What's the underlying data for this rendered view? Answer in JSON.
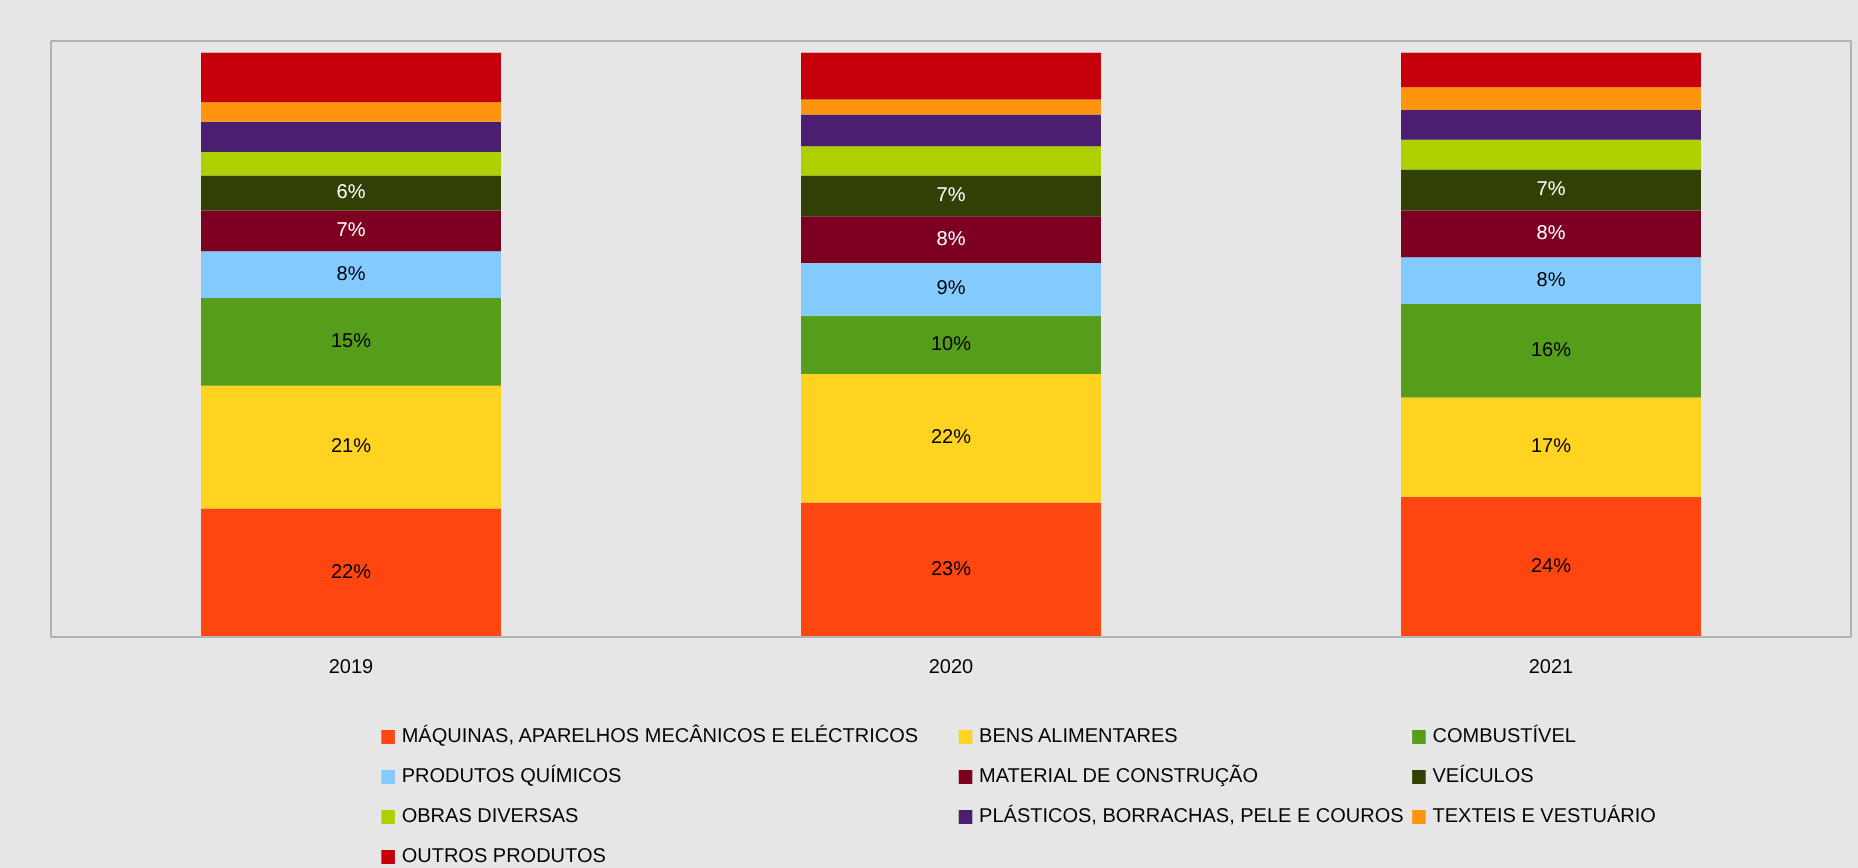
{
  "chart_data": {
    "type": "bar",
    "stacked": true,
    "categories": [
      "2019",
      "2020",
      "2021"
    ],
    "legend": "bottom",
    "grid": false,
    "series": [
      {
        "name": "MÁQUINAS, APARELHOS MECÂNICOS E ELÉCTRICOS",
        "color": "#ff4510",
        "values": [
          22,
          23,
          24
        ],
        "value_labels": [
          "22%",
          "23%",
          "24%"
        ]
      },
      {
        "name": "BENS ALIMENTARES",
        "color": "#ffd320",
        "values": [
          21,
          22,
          17
        ],
        "value_labels": [
          "21%",
          "22%",
          "17%"
        ]
      },
      {
        "name": "COMBUSTÍVEL",
        "color": "#579d1c",
        "values": [
          15,
          10,
          16
        ],
        "value_labels": [
          "15%",
          "10%",
          "16%"
        ]
      },
      {
        "name": "PRODUTOS QUÍMICOS",
        "color": "#83caff",
        "values": [
          8,
          9,
          8
        ],
        "value_labels": [
          "8%",
          "9%",
          "8%"
        ]
      },
      {
        "name": "MATERIAL DE CONSTRUÇÃO",
        "color": "#7e0021",
        "values": [
          7,
          8,
          8
        ],
        "value_labels": [
          "7%",
          "8%",
          "8%"
        ]
      },
      {
        "name": "VEÍCULOS",
        "color": "#314004",
        "values": [
          6,
          7,
          7
        ],
        "value_labels": [
          "6%",
          "7%",
          "7%"
        ]
      },
      {
        "name": "OBRAS DIVERSAS",
        "color": "#aecf00",
        "values": [
          4.0,
          5.0,
          5.1
        ]
      },
      {
        "name": "PLÁSTICOS, BORRACHAS, PELE E COUROS",
        "color": "#4b1f6f",
        "values": [
          5.2,
          5.4,
          5.1
        ]
      },
      {
        "name": "TEXTEIS E VESTUÁRIO",
        "color": "#ff950e",
        "values": [
          3.3,
          2.6,
          3.9
        ]
      },
      {
        "name": "OUTROS PRODUTOS",
        "color": "#c5000b",
        "values": [
          8.5,
          8.0,
          5.9
        ]
      }
    ]
  }
}
